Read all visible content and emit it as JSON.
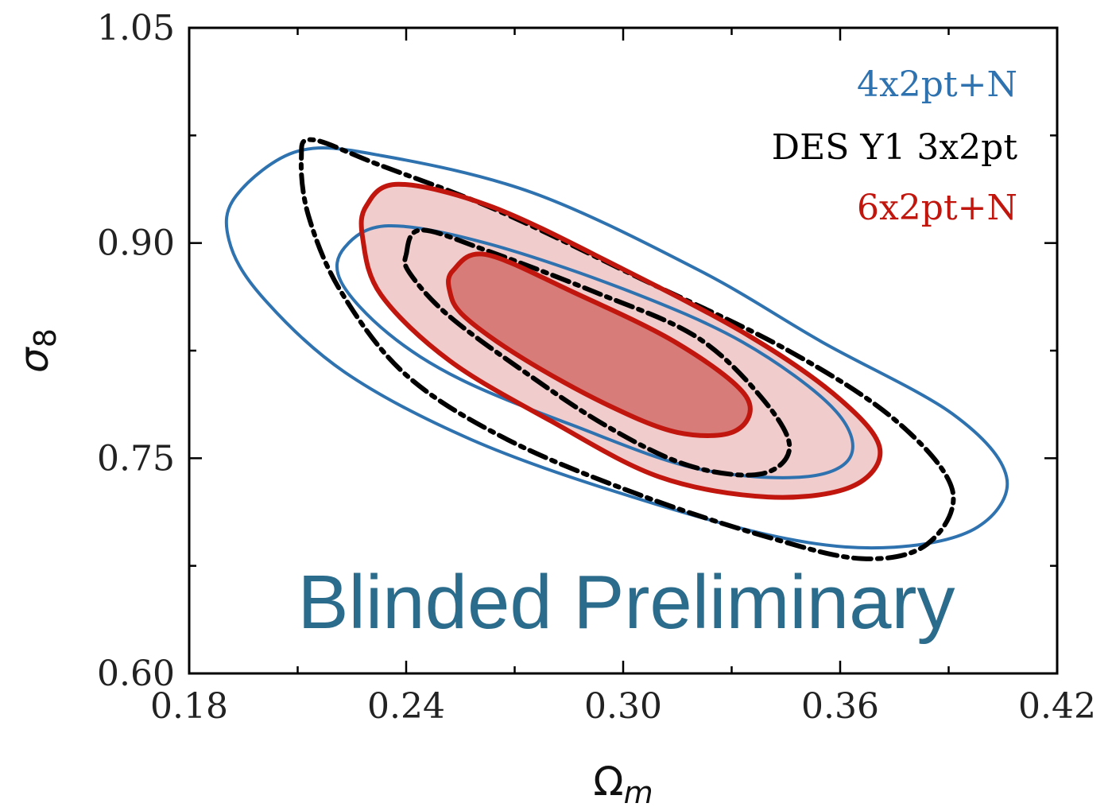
{
  "chart_data": {
    "type": "contour",
    "title": "",
    "xlabel": "Ωm",
    "xlabel_main": "Ω",
    "xlabel_sub": "m",
    "ylabel": "σ8",
    "ylabel_main": "σ",
    "ylabel_sub": "8",
    "xlim": [
      0.18,
      0.42
    ],
    "ylim": [
      0.6,
      1.05
    ],
    "xticks": [
      "0.18",
      "0.24",
      "0.30",
      "0.36",
      "0.42"
    ],
    "yticks": [
      "0.60",
      "0.75",
      "0.90",
      "1.05"
    ],
    "legend_position": "top-right",
    "watermark": "Blinded Preliminary",
    "colors": {
      "blue": "#2f72b0",
      "black": "#000000",
      "red": "#c0160e",
      "red_fill_outer": "#f0cccc",
      "red_fill_inner": "#d77c79",
      "watermark": "#2b6b8b"
    },
    "series": [
      {
        "name": "4x2pt+N",
        "color": "#2f72b0",
        "style": "solid",
        "contours": [
          {
            "level": "inner",
            "points": [
              [
                0.223,
                0.897
              ],
              [
                0.235,
                0.912
              ],
              [
                0.262,
                0.9
              ],
              [
                0.3,
                0.868
              ],
              [
                0.333,
                0.831
              ],
              [
                0.358,
                0.785
              ],
              [
                0.363,
                0.752
              ],
              [
                0.35,
                0.737
              ],
              [
                0.32,
                0.743
              ],
              [
                0.286,
                0.773
              ],
              [
                0.255,
                0.805
              ],
              [
                0.235,
                0.837
              ],
              [
                0.222,
                0.873
              ]
            ]
          },
          {
            "level": "outer",
            "points": [
              [
                0.193,
                0.933
              ],
              [
                0.21,
                0.964
              ],
              [
                0.233,
                0.961
              ],
              [
                0.275,
                0.935
              ],
              [
                0.321,
                0.881
              ],
              [
                0.355,
                0.831
              ],
              [
                0.391,
                0.781
              ],
              [
                0.406,
                0.737
              ],
              [
                0.398,
                0.702
              ],
              [
                0.375,
                0.688
              ],
              [
                0.345,
                0.694
              ],
              [
                0.3,
                0.725
              ],
              [
                0.258,
                0.763
              ],
              [
                0.223,
                0.81
              ],
              [
                0.2,
                0.863
              ],
              [
                0.191,
                0.902
              ]
            ]
          }
        ]
      },
      {
        "name": "DES Y1 3x2pt",
        "color": "#000000",
        "style": "dashdot",
        "contours": [
          {
            "level": "inner",
            "points": [
              [
                0.24,
                0.892
              ],
              [
                0.244,
                0.909
              ],
              [
                0.262,
                0.895
              ],
              [
                0.292,
                0.866
              ],
              [
                0.32,
                0.835
              ],
              [
                0.338,
                0.793
              ],
              [
                0.346,
                0.758
              ],
              [
                0.338,
                0.739
              ],
              [
                0.318,
                0.745
              ],
              [
                0.295,
                0.773
              ],
              [
                0.27,
                0.815
              ],
              [
                0.251,
                0.851
              ],
              [
                0.241,
                0.879
              ]
            ]
          },
          {
            "level": "outer",
            "points": [
              [
                0.211,
                0.959
              ],
              [
                0.214,
                0.972
              ],
              [
                0.232,
                0.955
              ],
              [
                0.265,
                0.923
              ],
              [
                0.305,
                0.875
              ],
              [
                0.345,
                0.826
              ],
              [
                0.375,
                0.777
              ],
              [
                0.391,
                0.728
              ],
              [
                0.384,
                0.69
              ],
              [
                0.366,
                0.68
              ],
              [
                0.34,
                0.695
              ],
              [
                0.305,
                0.724
              ],
              [
                0.268,
                0.763
              ],
              [
                0.24,
                0.808
              ],
              [
                0.222,
                0.866
              ],
              [
                0.213,
                0.919
              ]
            ]
          }
        ]
      },
      {
        "name": "6x2pt+N",
        "color": "#c0160e",
        "style": "solid-filled",
        "contours": [
          {
            "level": "inner",
            "points": [
              [
                0.253,
                0.881
              ],
              [
                0.262,
                0.892
              ],
              [
                0.286,
                0.866
              ],
              [
                0.315,
                0.83
              ],
              [
                0.334,
                0.793
              ],
              [
                0.331,
                0.769
              ],
              [
                0.315,
                0.768
              ],
              [
                0.295,
                0.788
              ],
              [
                0.272,
                0.82
              ],
              [
                0.256,
                0.849
              ],
              [
                0.252,
                0.867
              ]
            ]
          },
          {
            "level": "outer",
            "points": [
              [
                0.229,
                0.926
              ],
              [
                0.238,
                0.941
              ],
              [
                0.264,
                0.925
              ],
              [
                0.299,
                0.883
              ],
              [
                0.335,
                0.835
              ],
              [
                0.36,
                0.791
              ],
              [
                0.371,
                0.756
              ],
              [
                0.363,
                0.73
              ],
              [
                0.34,
                0.723
              ],
              [
                0.31,
                0.737
              ],
              [
                0.28,
                0.776
              ],
              [
                0.252,
                0.818
              ],
              [
                0.233,
                0.864
              ],
              [
                0.228,
                0.903
              ]
            ]
          }
        ]
      }
    ]
  }
}
